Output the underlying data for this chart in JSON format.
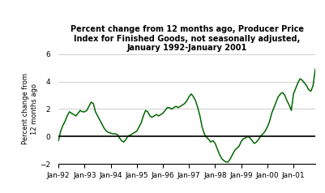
{
  "title": "Percent change from 12 months ago, Producer Price\nIndex for Finished Goods, not seasonally adjusted,\nJanuary 1992-January 2001",
  "ylabel": "Percent change from\n12 months ago",
  "ylim": [
    -2.0,
    6.0
  ],
  "yticks": [
    -2.0,
    0.0,
    2.0,
    4.0,
    6.0
  ],
  "xtick_labels": [
    "Jan-92",
    "Jan-93",
    "Jan-94",
    "Jan-95",
    "Jan-96",
    "Jan-97",
    "Jan-98",
    "Jan-99",
    "Jan-00",
    "Jan-01"
  ],
  "line_color": "#006600",
  "background_color": "#ffffff",
  "values": [
    -0.3,
    0.4,
    0.8,
    1.1,
    1.5,
    1.8,
    1.7,
    1.6,
    1.5,
    1.7,
    1.9,
    1.8,
    1.8,
    1.9,
    2.2,
    2.5,
    2.4,
    1.8,
    1.5,
    1.2,
    0.9,
    0.6,
    0.4,
    0.3,
    0.25,
    0.2,
    0.2,
    0.15,
    -0.1,
    -0.3,
    -0.4,
    -0.2,
    0.05,
    0.1,
    0.2,
    0.3,
    0.4,
    0.7,
    1.0,
    1.5,
    1.9,
    1.8,
    1.5,
    1.4,
    1.5,
    1.6,
    1.5,
    1.6,
    1.7,
    1.9,
    2.1,
    2.1,
    2.0,
    2.1,
    2.2,
    2.1,
    2.2,
    2.3,
    2.4,
    2.6,
    2.9,
    3.1,
    2.9,
    2.6,
    2.1,
    1.5,
    0.7,
    0.2,
    -0.05,
    -0.2,
    -0.4,
    -0.3,
    -0.5,
    -0.9,
    -1.3,
    -1.6,
    -1.75,
    -1.85,
    -1.85,
    -1.6,
    -1.3,
    -1.0,
    -0.85,
    -0.7,
    -0.35,
    -0.15,
    -0.1,
    0.0,
    -0.1,
    -0.3,
    -0.5,
    -0.4,
    -0.2,
    0.05,
    0.2,
    0.4,
    0.7,
    1.1,
    1.7,
    2.1,
    2.5,
    2.9,
    3.1,
    3.2,
    3.0,
    2.6,
    2.3,
    1.9,
    3.1,
    3.5,
    3.9,
    4.2,
    4.1,
    3.9,
    3.7,
    3.4,
    3.3,
    3.7,
    4.9
  ]
}
